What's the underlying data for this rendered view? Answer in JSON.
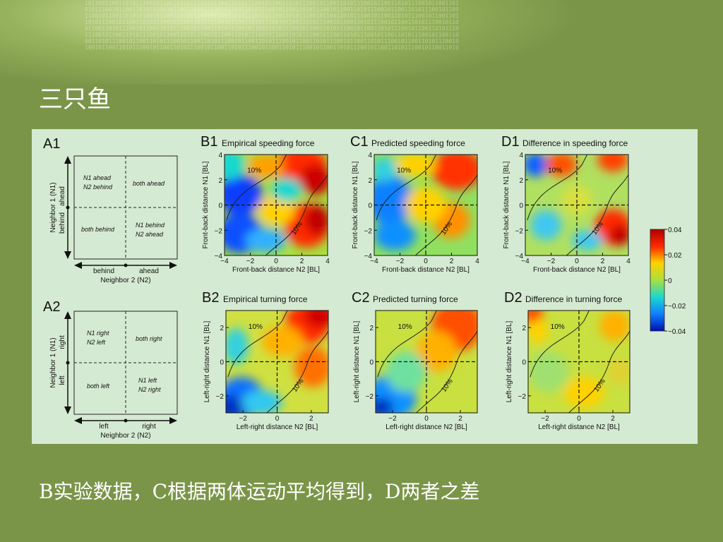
{
  "slide": {
    "title": "三只鱼",
    "caption": "B实验数据，C根据两体运动平均得到，D两者之差"
  },
  "schematics": [
    {
      "label": "A1",
      "y_axis": "Neighbor 1 (N1)",
      "y_top": "ahead",
      "y_bottom": "behind",
      "x_axis": "Neighbor 2 (N2)",
      "x_left": "behind",
      "x_right": "ahead",
      "q_tl_1": "N1 ahead",
      "q_tl_2": "N2 behind",
      "q_tr": "both ahead",
      "q_bl": "both behind",
      "q_br_1": "N1 behind",
      "q_br_2": "N2 ahead"
    },
    {
      "label": "A2",
      "y_axis": "Neighbor 1 (N1)",
      "y_top": "right",
      "y_bottom": "left",
      "x_axis": "Neighbor 2 (N2)",
      "x_left": "left",
      "x_right": "right",
      "q_tl_1": "N1 right",
      "q_tl_2": "N2 left",
      "q_tr": "both right",
      "q_bl": "both left",
      "q_br_1": "N1 left",
      "q_br_2": "N2 right"
    }
  ],
  "panels": [
    {
      "label": "B1",
      "title": "Empirical speeding force",
      "xlabel": "Front-back distance N2 [BL]",
      "ylabel": "Front-back distance N1 [BL]",
      "xticks": [
        "−4",
        "−2",
        "0",
        "2",
        "4"
      ],
      "yticks": [
        "4",
        "2",
        "0",
        "−2",
        "−4"
      ],
      "contour_label": "10%"
    },
    {
      "label": "C1",
      "title": "Predicted speeding force",
      "xlabel": "Front-back distance N2 [BL]",
      "ylabel": "Front-back distance N1 [BL]",
      "xticks": [
        "−4",
        "−2",
        "0",
        "2",
        "4"
      ],
      "yticks": [
        "4",
        "2",
        "0",
        "−2",
        "−4"
      ],
      "contour_label": "10%"
    },
    {
      "label": "D1",
      "title": "Difference in speeding force",
      "xlabel": "Front-back distance N2 [BL]",
      "ylabel": "Front-back distance N1 [BL]",
      "xticks": [
        "−4",
        "−2",
        "0",
        "2",
        "4"
      ],
      "yticks": [
        "4",
        "2",
        "0",
        "−2",
        "−4"
      ],
      "contour_label": "10%"
    },
    {
      "label": "B2",
      "title": "Empirical turning force",
      "xlabel": "Left-right distance N2 [BL]",
      "ylabel": "Left-right distance N1 [BL]",
      "xticks": [
        "−2",
        "0",
        "2"
      ],
      "yticks": [
        "2",
        "0",
        "−2"
      ],
      "contour_label": "10%"
    },
    {
      "label": "C2",
      "title": "Predicted turning force",
      "xlabel": "Left-right distance N2 [BL]",
      "ylabel": "Left-right distance N1 [BL]",
      "xticks": [
        "−2",
        "0",
        "2"
      ],
      "yticks": [
        "2",
        "0",
        "−2"
      ],
      "contour_label": "10%"
    },
    {
      "label": "D2",
      "title": "Difference in turning force",
      "xlabel": "Left-right distance N2 [BL]",
      "ylabel": "Left-right distance N1 [BL]",
      "xticks": [
        "−2",
        "0",
        "2"
      ],
      "yticks": [
        "2",
        "0",
        "−2"
      ],
      "contour_label": "10%"
    }
  ],
  "colorbar": {
    "ticks": [
      "0.04",
      "0.02",
      "0",
      "−0.02",
      "−0.04"
    ],
    "colors": [
      "#b00000",
      "#ff2a00",
      "#ffd200",
      "#a8e040",
      "#18d8d0",
      "#1080ff",
      "#0010b0"
    ]
  }
}
